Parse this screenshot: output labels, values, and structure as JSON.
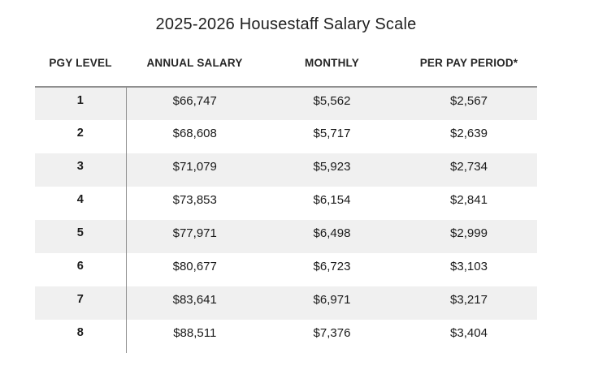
{
  "page": {
    "title": "2025-2026 Housestaff Salary Scale"
  },
  "table": {
    "headers": [
      "PGY LEVEL",
      "ANNUAL SALARY",
      "MONTHLY",
      "PER PAY PERIOD*"
    ],
    "rows": [
      {
        "pgy": "1",
        "annual": "$66,747",
        "monthly": "$5,562",
        "per_pay_period": "$2,567"
      },
      {
        "pgy": "2",
        "annual": "$68,608",
        "monthly": "$5,717",
        "per_pay_period": "$2,639"
      },
      {
        "pgy": "3",
        "annual": "$71,079",
        "monthly": "$5,923",
        "per_pay_period": "$2,734"
      },
      {
        "pgy": "4",
        "annual": "$73,853",
        "monthly": "$6,154",
        "per_pay_period": "$2,841"
      },
      {
        "pgy": "5",
        "annual": "$77,971",
        "monthly": "$6,498",
        "per_pay_period": "$2,999"
      },
      {
        "pgy": "6",
        "annual": "$80,677",
        "monthly": "$6,723",
        "per_pay_period": "$3,103"
      },
      {
        "pgy": "7",
        "annual": "$83,641",
        "monthly": "$6,971",
        "per_pay_period": "$3,217"
      },
      {
        "pgy": "8",
        "annual": "$88,511",
        "monthly": "$7,376",
        "per_pay_period": "$3,404"
      }
    ]
  },
  "colors": {
    "stripe": "#f0f0f0",
    "rule": "#8f8f8f",
    "text": "#1a1a1a"
  }
}
